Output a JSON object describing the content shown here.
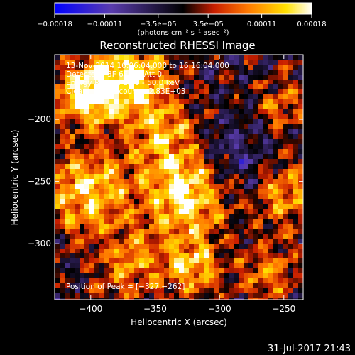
{
  "chart_data": {
    "type": "heatmap",
    "title": "Reconstructed RHESSI Image",
    "xlabel": "Heliocentric X (arcsec)",
    "ylabel": "Heliocentric Y (arcsec)",
    "x_range": [
      -428,
      -235
    ],
    "y_range": [
      -345,
      -148
    ],
    "x_ticks": [
      -400,
      -350,
      -300,
      -250
    ],
    "x_tick_labels": [
      "−400",
      "−350",
      "−300",
      "−250"
    ],
    "y_ticks": [
      -200,
      -250,
      -300
    ],
    "y_tick_labels": [
      "−200",
      "−250",
      "−300"
    ],
    "colorbar": {
      "min": -0.00018,
      "max": 0.00018,
      "colormap": "blue-purple-black-red-orange-yellow-white",
      "tick_values": [
        -0.00018,
        -0.00011,
        -3.5e-05,
        3.5e-05,
        0.00011,
        0.00018
      ],
      "tick_labels": [
        "−0.00018",
        "−0.00011",
        "−3.5e−05",
        "3.5e−05",
        "0.00011",
        "0.00018"
      ],
      "units": "(photons cm⁻² s⁻¹ asec⁻²)"
    },
    "annotations": {
      "time_range": "13‐Nov‐2014 16:06:04.000 to 16:16:04.000",
      "detectors": "Detectors: 3F 6F 9F; Att 0",
      "energy": "Energy Range: 25.0 ‐ 50.0 keV",
      "clean": "Clean     Total counts: 2.83E+03",
      "peak": "Position of Peak = [−327,−262]"
    },
    "peak_position": [
      -327,
      -262
    ],
    "grid": false
  },
  "footer": {
    "date": "31‐Jul‐2017 21:43"
  },
  "colors": {
    "background": "#000000",
    "foreground": "#ffffff",
    "colormap_stops": [
      "#0000ff",
      "#5a3cae",
      "#000000",
      "#c81e00",
      "#ff7800",
      "#ffe000",
      "#ffffff"
    ]
  }
}
